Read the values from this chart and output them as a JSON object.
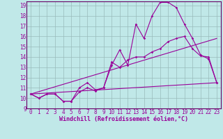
{
  "background_color": "#c0e8e8",
  "grid_color": "#99bbbb",
  "line_color": "#990099",
  "spine_color": "#660066",
  "xlabel": "Windchill (Refroidissement éolien,°C)",
  "xlabel_fontsize": 6.0,
  "tick_fontsize": 5.5,
  "xlim": [
    -0.5,
    23.5
  ],
  "ylim": [
    9,
    19.4
  ],
  "yticks": [
    9,
    10,
    11,
    12,
    13,
    14,
    15,
    16,
    17,
    18,
    19
  ],
  "xticks": [
    0,
    1,
    2,
    3,
    4,
    5,
    6,
    7,
    8,
    9,
    10,
    11,
    12,
    13,
    14,
    15,
    16,
    17,
    18,
    19,
    20,
    21,
    22,
    23
  ],
  "line1_x": [
    0,
    1,
    2,
    3,
    4,
    5,
    6,
    7,
    8,
    9,
    10,
    11,
    12,
    13,
    14,
    15,
    16,
    17,
    18,
    19,
    20,
    21,
    22,
    23
  ],
  "line1_y": [
    10.4,
    10.0,
    10.4,
    10.4,
    9.7,
    9.7,
    10.6,
    11.0,
    10.7,
    11.0,
    13.2,
    14.7,
    13.2,
    17.2,
    15.8,
    18.0,
    19.3,
    19.3,
    18.8,
    17.2,
    15.8,
    14.2,
    13.8,
    11.5
  ],
  "line2_x": [
    0,
    1,
    2,
    3,
    4,
    5,
    6,
    7,
    8,
    9,
    10,
    11,
    12,
    13,
    14,
    15,
    16,
    17,
    18,
    19,
    20,
    21,
    22,
    23
  ],
  "line2_y": [
    10.4,
    10.0,
    10.4,
    10.4,
    9.7,
    9.7,
    11.0,
    11.5,
    10.8,
    11.0,
    13.5,
    13.0,
    13.7,
    14.0,
    14.0,
    14.5,
    14.8,
    15.5,
    15.8,
    16.0,
    14.8,
    14.1,
    14.0,
    11.5
  ],
  "line3_x": [
    0,
    23
  ],
  "line3_y": [
    10.4,
    15.8
  ],
  "line4_x": [
    0,
    23
  ],
  "line4_y": [
    10.4,
    11.5
  ]
}
